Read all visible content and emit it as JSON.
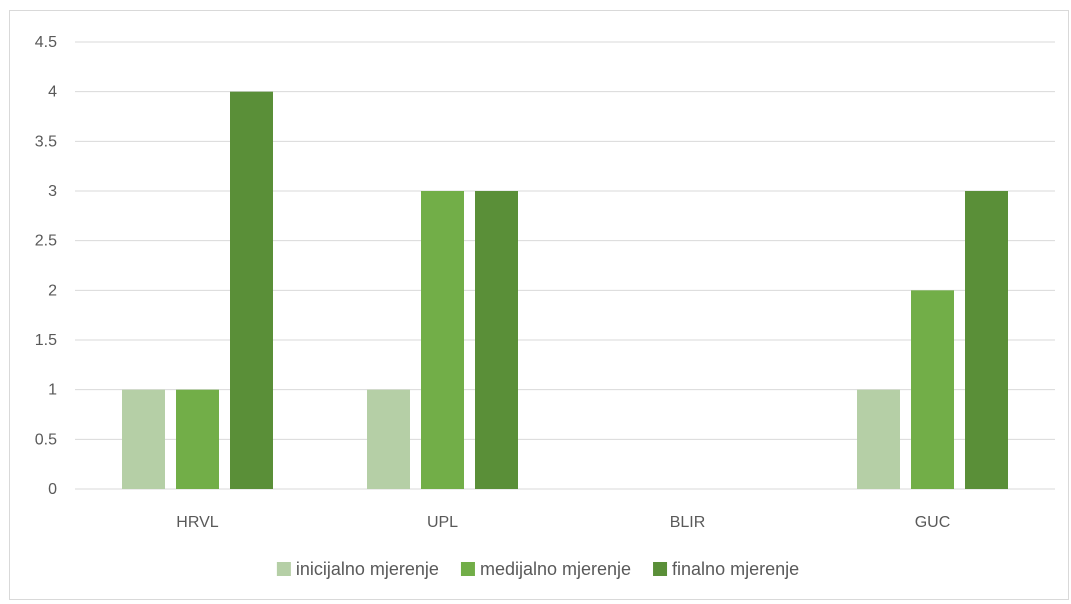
{
  "chart_data": {
    "type": "bar",
    "categories": [
      "HRVL",
      "UPL",
      "BLIR",
      "GUC"
    ],
    "series": [
      {
        "name": "inicijalno mjerenje",
        "values": [
          1,
          1,
          0,
          1
        ],
        "color": "#b5cfa6"
      },
      {
        "name": "medijalno mjerenje",
        "values": [
          1,
          3,
          0,
          2
        ],
        "color": "#72ae48"
      },
      {
        "name": "finalno mjerenje",
        "values": [
          4,
          3,
          0,
          3
        ],
        "color": "#5a8f38"
      }
    ],
    "ylim": [
      0,
      4.5
    ],
    "y_ticks": [
      "0",
      "0.5",
      "1",
      "1.5",
      "2",
      "2.5",
      "3",
      "3.5",
      "4",
      "4.5"
    ],
    "title": "",
    "xlabel": "",
    "ylabel": "",
    "grid": true,
    "gridline_color": "#d9d9d9",
    "legend_position": "bottom"
  }
}
